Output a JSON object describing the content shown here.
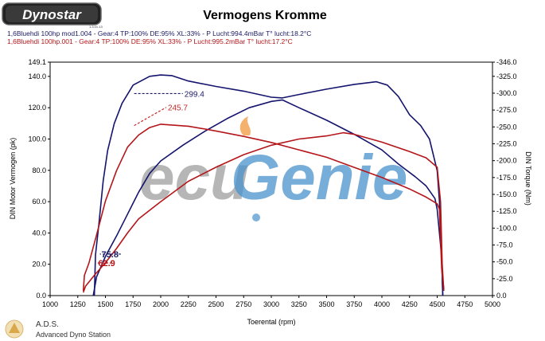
{
  "header": {
    "logo_text": "Dynostar",
    "logo_sub": "1.3.01.13",
    "title": "Vermogens Kromme",
    "run_blue": "1,6Bluehdi 100hp mod1.004 - Gear:4 TP:100% DE:95% XL:33%    - P Lucht:994.4mBar T° lucht:18.2°C",
    "run_red": "1,6Bluehdi 100hp.001 - Gear:4 TP:100% DE:95% XL:33%    - P Lucht:995.2mBar T° lucht:17.2°C"
  },
  "footer": {
    "brand": "A.D.S.",
    "brand_sub": "Advanced Dyno Station"
  },
  "watermark": {
    "text": "ecuGenie",
    "colors": {
      "grey": "#8c8c8c",
      "blue": "#2a80c4",
      "orange": "#f08c2a"
    }
  },
  "colors": {
    "blue": "#14146e",
    "red": "#b4161a",
    "dashed_blue": "#1a1a66",
    "dashed_red": "#c42a2a"
  },
  "chart_data": {
    "type": "line",
    "xlabel": "Toerental (rpm)",
    "ylabel_left": "DIN Motor Vermogen (pk)",
    "ylabel_right": "DIN Torque (Nm)",
    "x_ticks": [
      "1000",
      "1250",
      "1500",
      "1750",
      "2000",
      "2250",
      "2500",
      "2750",
      "3000",
      "3250",
      "3500",
      "3750",
      "4000",
      "4250",
      "4500",
      "4750",
      "5000"
    ],
    "y_left_ticks": [
      "0.0",
      "20.0",
      "40.0",
      "60.0",
      "80.0",
      "100.0",
      "120.0",
      "140.0",
      "149.1"
    ],
    "y_right_ticks": [
      "0.0",
      "-25.0",
      "-50.0",
      "-75.0",
      "-100.0",
      "-125.0",
      "-150.0",
      "-175.0",
      "-200.0",
      "-225.0",
      "-250.0",
      "-275.0",
      "-300.0",
      "-325.0",
      "-346.0"
    ],
    "xlim": [
      1000,
      5000
    ],
    "ylim_left": [
      0,
      149.1
    ],
    "ylim_right": [
      0,
      346
    ],
    "series": [
      {
        "name": "1,6Bluehdi 100hp mod1.004",
        "color": "#14146e",
        "torque": [
          [
            1400,
            0
          ],
          [
            1410,
            60
          ],
          [
            1440,
            105
          ],
          [
            1480,
            170
          ],
          [
            1520,
            215
          ],
          [
            1580,
            255
          ],
          [
            1650,
            285
          ],
          [
            1750,
            312
          ],
          [
            1900,
            325
          ],
          [
            2000,
            327
          ],
          [
            2100,
            326
          ],
          [
            2250,
            318
          ],
          [
            2500,
            310
          ],
          [
            2750,
            303
          ],
          [
            3000,
            294
          ],
          [
            3100,
            293
          ],
          [
            3250,
            298
          ],
          [
            3500,
            306
          ],
          [
            3750,
            313
          ],
          [
            3950,
            317
          ],
          [
            4050,
            312
          ],
          [
            4150,
            295
          ],
          [
            4250,
            268
          ],
          [
            4350,
            252
          ],
          [
            4430,
            232
          ],
          [
            4500,
            185
          ],
          [
            4520,
            140
          ],
          [
            4540,
            60
          ],
          [
            4550,
            0
          ]
        ],
        "power": [
          [
            1390,
            0
          ],
          [
            1420,
            12
          ],
          [
            1500,
            25
          ],
          [
            1600,
            38
          ],
          [
            1700,
            52
          ],
          [
            1800,
            66
          ],
          [
            1900,
            78
          ],
          [
            2000,
            86
          ],
          [
            2200,
            96
          ],
          [
            2400,
            105
          ],
          [
            2600,
            113
          ],
          [
            2800,
            120
          ],
          [
            3000,
            124
          ],
          [
            3100,
            125
          ],
          [
            3250,
            120
          ],
          [
            3500,
            112
          ],
          [
            3750,
            103
          ],
          [
            4000,
            93
          ],
          [
            4150,
            84
          ],
          [
            4300,
            76
          ],
          [
            4400,
            70
          ],
          [
            4480,
            62
          ],
          [
            4500,
            55
          ],
          [
            4540,
            25
          ],
          [
            4550,
            0
          ]
        ]
      },
      {
        "name": "1,6Bluehdi 100hp.001",
        "color": "#b4161a",
        "torque": [
          [
            1300,
            7
          ],
          [
            1310,
            30
          ],
          [
            1350,
            48
          ],
          [
            1420,
            90
          ],
          [
            1500,
            140
          ],
          [
            1600,
            185
          ],
          [
            1700,
            220
          ],
          [
            1800,
            238
          ],
          [
            1900,
            249
          ],
          [
            2000,
            254
          ],
          [
            2250,
            251
          ],
          [
            2500,
            244
          ],
          [
            2750,
            236
          ],
          [
            3000,
            227
          ],
          [
            3250,
            216
          ],
          [
            3500,
            205
          ],
          [
            3750,
            190
          ],
          [
            4000,
            175
          ],
          [
            4250,
            158
          ],
          [
            4400,
            146
          ],
          [
            4500,
            136
          ],
          [
            4520,
            128
          ],
          [
            4540,
            40
          ],
          [
            4560,
            10
          ]
        ],
        "power": [
          [
            1300,
            2
          ],
          [
            1320,
            6
          ],
          [
            1400,
            13
          ],
          [
            1500,
            21
          ],
          [
            1600,
            30
          ],
          [
            1700,
            40
          ],
          [
            1800,
            49
          ],
          [
            2000,
            60
          ],
          [
            2250,
            73
          ],
          [
            2500,
            82
          ],
          [
            2750,
            90
          ],
          [
            3000,
            96
          ],
          [
            3250,
            100
          ],
          [
            3500,
            102
          ],
          [
            3650,
            104
          ],
          [
            3750,
            103
          ],
          [
            4000,
            98
          ],
          [
            4250,
            92
          ],
          [
            4400,
            88
          ],
          [
            4500,
            82
          ],
          [
            4530,
            60
          ],
          [
            4545,
            20
          ],
          [
            4560,
            3
          ]
        ]
      }
    ],
    "annotations": [
      {
        "text": "299.4",
        "axis": "right",
        "color": "#1a1a66",
        "x": 2200,
        "y": 299.4,
        "from": [
          1760,
          299.4
        ]
      },
      {
        "text": "245.7",
        "axis": "right",
        "color": "#c42a2a",
        "x": 2050,
        "y": 279,
        "from": [
          1760,
          252
        ]
      },
      {
        "text": "75.8",
        "axis": "left",
        "color": "#1a1a66",
        "x": 1450,
        "y": 26.5,
        "from": [
          1640,
          26.5
        ]
      },
      {
        "text": "62.9",
        "axis": "left",
        "color": "#b4161a",
        "x": 1420,
        "y": 20.8,
        "from": [
          1560,
          20.8
        ]
      }
    ]
  }
}
